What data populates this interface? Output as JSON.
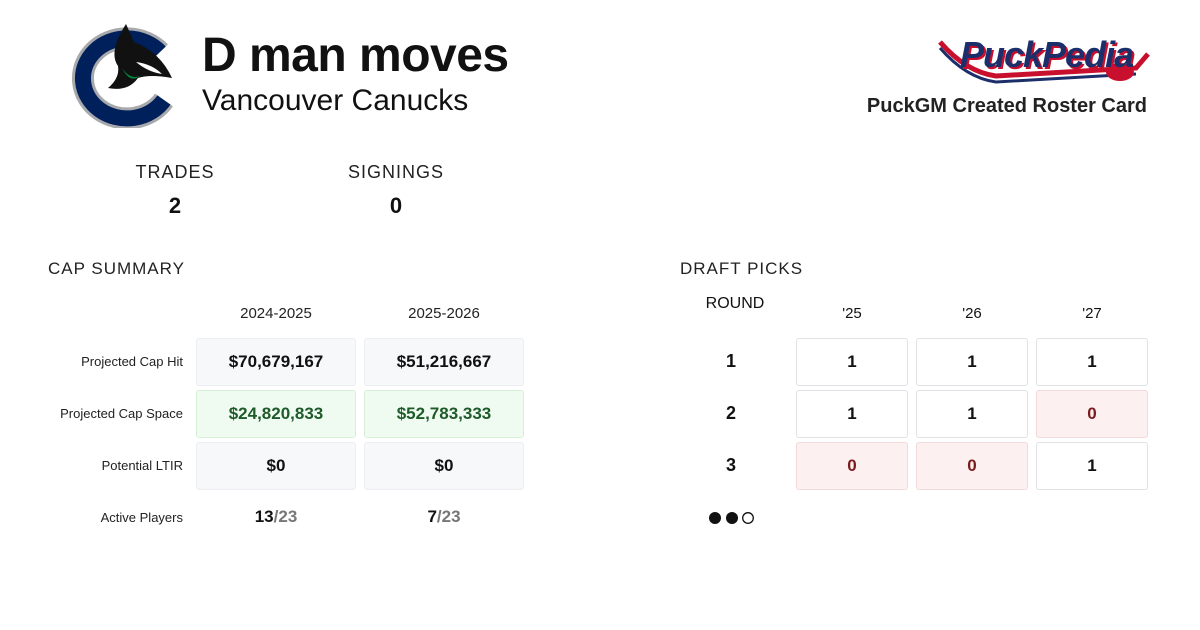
{
  "header": {
    "title": "D man moves",
    "team": "Vancouver Canucks",
    "brand": "PuckPedia",
    "subtitle": "PuckGM Created Roster Card"
  },
  "stats": [
    {
      "label": "TRADES",
      "value": 2
    },
    {
      "label": "SIGNINGS",
      "value": 0
    }
  ],
  "cap_summary": {
    "title": "CAP SUMMARY",
    "columns": [
      "2024-2025",
      "2025-2026"
    ],
    "rows": [
      {
        "label": "Projected Cap Hit",
        "style": "neutral",
        "values": [
          "$70,679,167",
          "$51,216,667"
        ]
      },
      {
        "label": "Projected Cap Space",
        "style": "positive",
        "values": [
          "$24,820,833",
          "$52,783,333"
        ]
      },
      {
        "label": "Potential LTIR",
        "style": "neutral",
        "values": [
          "$0",
          "$0"
        ]
      }
    ],
    "active": {
      "label": "Active Players",
      "values": [
        {
          "count": 13,
          "limit": "/23"
        },
        {
          "count": 7,
          "limit": "/23"
        }
      ]
    }
  },
  "draft_picks": {
    "title": "DRAFT PICKS",
    "round_label": "ROUND",
    "years": [
      "'25",
      "'26",
      "'27"
    ],
    "rows": [
      {
        "round": 1,
        "picks": [
          1,
          1,
          1
        ]
      },
      {
        "round": 2,
        "picks": [
          1,
          1,
          0
        ]
      },
      {
        "round": 3,
        "picks": [
          0,
          0,
          1
        ]
      }
    ]
  }
}
